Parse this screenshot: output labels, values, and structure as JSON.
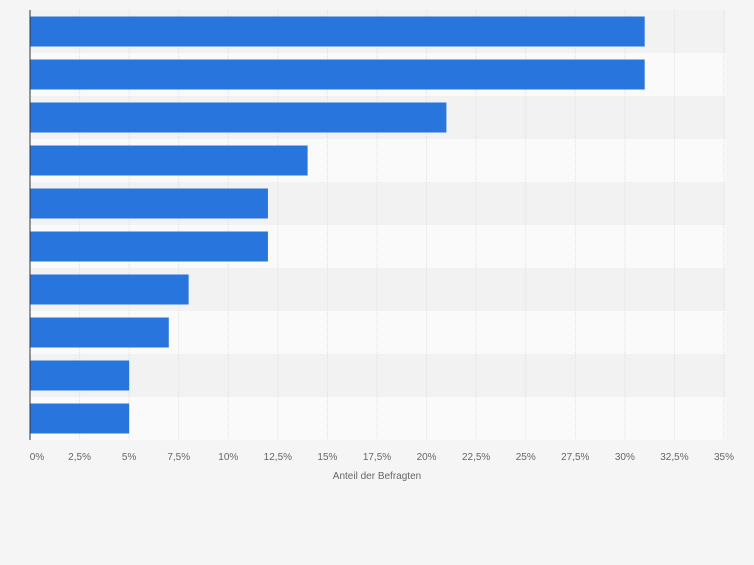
{
  "chart_data": {
    "type": "bar",
    "orientation": "horizontal",
    "categories": [
      "",
      "",
      "",
      "",
      "",
      "",
      "",
      "",
      "",
      ""
    ],
    "values": [
      31,
      31,
      21,
      14,
      12,
      12,
      8,
      7,
      5,
      5
    ],
    "xlabel": "Anteil der Befragten",
    "ylabel": "",
    "xlim": [
      0,
      35
    ],
    "ticks": [
      0,
      2.5,
      5,
      7.5,
      10,
      12.5,
      15,
      17.5,
      20,
      22.5,
      25,
      27.5,
      30,
      32.5,
      35
    ],
    "tick_labels": [
      "0%",
      "2,5%",
      "5%",
      "7,5%",
      "10%",
      "12,5%",
      "15%",
      "17,5%",
      "20%",
      "22,5%",
      "25%",
      "27,5%",
      "30%",
      "32,5%",
      "35%"
    ],
    "bar_color": "#2876dd",
    "band_colors": [
      "#f2f2f2",
      "#fafafa"
    ],
    "grid": true,
    "grid_color": "#e0e0e0",
    "axis_color": "#333333",
    "tick_label_color": "#666666"
  }
}
